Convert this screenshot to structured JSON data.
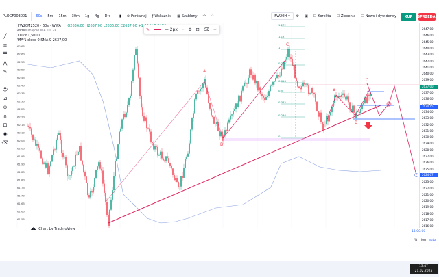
{
  "header": {
    "symbol": "PLOGF003001",
    "intervals": [
      "60s",
      "5m",
      "15m",
      "30m",
      "1g",
      "4g",
      "D"
    ],
    "active_interval": "60s",
    "compare_label": "Porównaj",
    "indicators_label": "Wskaźniki",
    "layouts_label": "Szablony",
    "account_label": "FW20H",
    "korekta_label": "Korekta",
    "zlecenia_label": "Zlecenia",
    "news_label": "News i dywidendy",
    "buy_label": "KUP",
    "sell_label": "SPRZEDAJ"
  },
  "legend": {
    "title": "FW20M2520 · 60s · WWA",
    "ohlc": "O2636,00 H2637,00 L2636,00 C2637,00 +1,00 (+0,04%)",
    "line2": "Przesunięcie MA 10 2ε",
    "line3": "LOP 61,5000",
    "line4": "MA 1 close 0 SMA 9 2637,00"
  },
  "chart": {
    "wave_labels": [
      "A",
      "B",
      "C",
      "A",
      "B",
      "C"
    ],
    "fib_labels": [
      "1.272",
      "1.13",
      "1",
      "0.786",
      "0.618",
      "0.5",
      "0.382",
      "0.236",
      "0"
    ],
    "left_axis": [
      "62,75",
      "62,70",
      "62,65",
      "62,60",
      "62,55",
      "62,50",
      "62,45",
      "62,40",
      "62,35",
      "62,30",
      "62,25",
      "62,20",
      "62,15",
      "62,10",
      "62,05",
      "62,00",
      "61,95",
      "61,90",
      "61,85",
      "61,80",
      "61,75",
      "61,70",
      "61,65",
      "61,60",
      "61,55"
    ],
    "right_axis": [
      "2647,00",
      "2646,00",
      "2645,00",
      "2644,00",
      "2643,00",
      "2642,00",
      "2641,00",
      "2640,00",
      "2639,00",
      "2638,00",
      "2637,00",
      "2636,00",
      "2635,00",
      "2634,00",
      "2633,00",
      "2632,00",
      "2631,00",
      "2630,00",
      "2629,00",
      "2628,00",
      "2627,00",
      "2626,00",
      "2625,00",
      "2624,00",
      "2623,00",
      "2622,00",
      "2621,00",
      "2620,00",
      "2619,00",
      "2618,00",
      "2617,00",
      "2616,00"
    ],
    "price_tags": [
      {
        "text": "2637,00",
        "color": "#089981"
      },
      {
        "text": "2634,15",
        "color": "#2962ff"
      },
      {
        "text": "2624,07",
        "color": "#2962ff"
      }
    ],
    "footer": "Chart by TradingView"
  },
  "bottom": {
    "timezone": "14:00:00",
    "log_label": "log",
    "auto_label": "auto",
    "pct_label": "%",
    "time": "13:47",
    "date": "21.02.2025"
  },
  "colors": {
    "up": "#089981",
    "down": "#f23645",
    "ma": "#6f8bd8",
    "trend": "#e0245e",
    "accent": "#2962ff"
  }
}
